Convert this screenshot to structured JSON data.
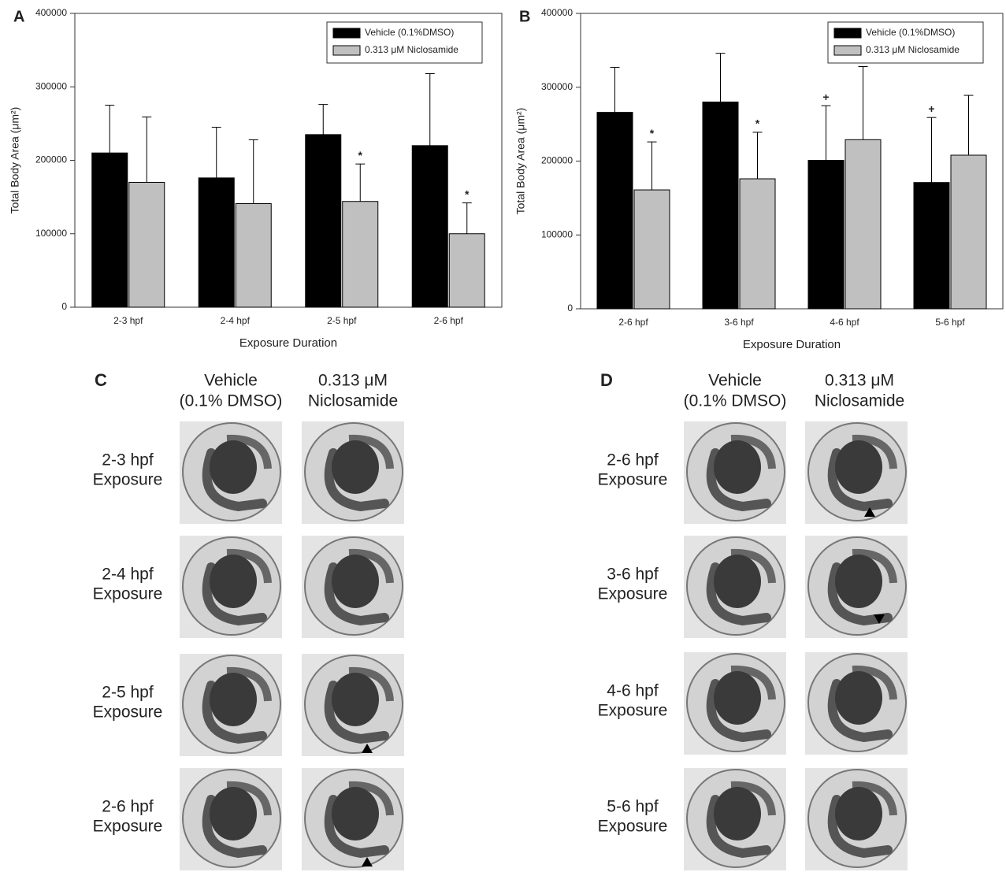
{
  "chart_data": [
    {
      "panel": "A",
      "type": "bar",
      "xlabel": "Exposure Duration",
      "ylabel": "Total Body Area (μm²)",
      "categories": [
        "2-3 hpf",
        "2-4 hpf",
        "2-5 hpf",
        "2-6 hpf"
      ],
      "ylim": [
        0,
        400000
      ],
      "yticks": [
        0,
        100000,
        200000,
        300000,
        400000
      ],
      "legend": "upper right",
      "series": [
        {
          "name": "Vehicle (0.1%DMSO)",
          "color": "#000000",
          "values": [
            210000,
            176000,
            235000,
            220000
          ],
          "errors": [
            65000,
            69000,
            41000,
            98000
          ],
          "markers": [
            null,
            null,
            null,
            null
          ]
        },
        {
          "name": "0.313 μM Niclosamide",
          "color": "#c0c0c0",
          "values": [
            170000,
            141000,
            144000,
            100000
          ],
          "errors": [
            89000,
            87000,
            51000,
            42000
          ],
          "markers": [
            null,
            null,
            "*",
            "*"
          ]
        }
      ]
    },
    {
      "panel": "B",
      "type": "bar",
      "xlabel": "Exposure Duration",
      "ylabel": "Total Body Area (μm²)",
      "categories": [
        "2-6 hpf",
        "3-6 hpf",
        "4-6 hpf",
        "5-6 hpf"
      ],
      "ylim": [
        0,
        400000
      ],
      "yticks": [
        0,
        100000,
        200000,
        300000,
        400000
      ],
      "legend": "upper right",
      "series": [
        {
          "name": "Vehicle (0.1%DMSO)",
          "color": "#000000",
          "values": [
            266000,
            280000,
            201000,
            171000
          ],
          "errors": [
            61000,
            66000,
            74000,
            88000
          ],
          "markers": [
            null,
            null,
            "+",
            "+"
          ]
        },
        {
          "name": "0.313 μM Niclosamide",
          "color": "#c0c0c0",
          "values": [
            161000,
            176000,
            229000,
            208000
          ],
          "errors": [
            65000,
            63000,
            99000,
            81000
          ],
          "markers": [
            "*",
            "*",
            null,
            null
          ]
        }
      ]
    }
  ],
  "panels": [
    {
      "letter": "C",
      "columns": [
        [
          "Vehicle",
          "(0.1% DMSO)"
        ],
        [
          "0.313 μM",
          "Niclosamide"
        ]
      ],
      "rows": [
        [
          "2-3 hpf",
          "Exposure"
        ],
        [
          "2-4 hpf",
          "Exposure"
        ],
        [
          "2-5 hpf",
          "Exposure"
        ],
        [
          "2-6 hpf",
          "Exposure"
        ]
      ]
    },
    {
      "letter": "D",
      "columns": [
        [
          "Vehicle",
          "(0.1% DMSO)"
        ],
        [
          "0.313 μM",
          "Niclosamide"
        ]
      ],
      "rows": [
        [
          "2-6 hpf",
          "Exposure"
        ],
        [
          "3-6 hpf",
          "Exposure"
        ],
        [
          "4-6 hpf",
          "Exposure"
        ],
        [
          "5-6 hpf",
          "Exposure"
        ]
      ]
    }
  ]
}
